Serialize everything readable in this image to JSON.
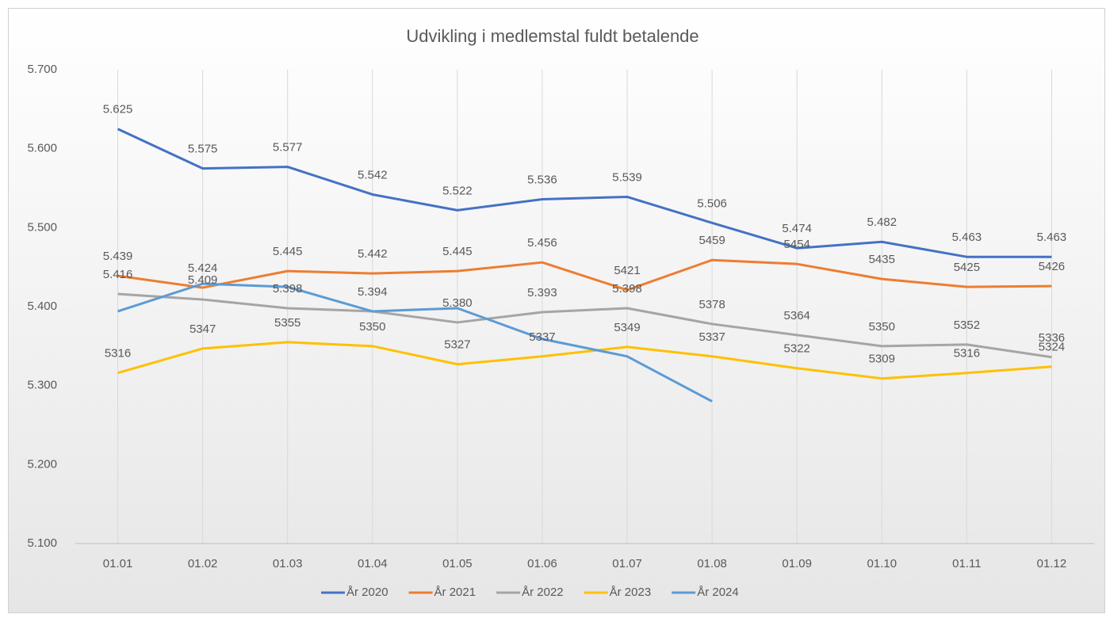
{
  "chart_data": {
    "type": "line",
    "title": "Udvikling i medlemstal fuldt betalende",
    "categories": [
      "01.01",
      "01.02",
      "01.03",
      "01.04",
      "01.05",
      "01.06",
      "01.07",
      "01.08",
      "01.09",
      "01.10",
      "01.11",
      "01.12"
    ],
    "ylim": [
      5100,
      5700
    ],
    "yticks": [
      {
        "value": 5100,
        "label": "5.100"
      },
      {
        "value": 5200,
        "label": "5.200"
      },
      {
        "value": 5300,
        "label": "5.300"
      },
      {
        "value": 5400,
        "label": "5.400"
      },
      {
        "value": 5500,
        "label": "5.500"
      },
      {
        "value": 5600,
        "label": "5.600"
      },
      {
        "value": 5700,
        "label": "5.700"
      }
    ],
    "grid": true,
    "legend": "bottom",
    "series": [
      {
        "name": "År 2020",
        "color": "#4472c4",
        "values": [
          5625,
          5575,
          5577,
          5542,
          5522,
          5536,
          5539,
          5506,
          5474,
          5482,
          5463,
          5463
        ],
        "value_labels": [
          "5.625",
          "5.575",
          "5.577",
          "5.542",
          "5.522",
          "5.536",
          "5.539",
          "5.506",
          "5.474",
          "5.482",
          "5.463",
          "5.463"
        ]
      },
      {
        "name": "År 2021",
        "color": "#ed7d31",
        "values": [
          5439,
          5424,
          5445,
          5442,
          5445,
          5456,
          5421,
          5459,
          5454,
          5435,
          5425,
          5426
        ],
        "value_labels": [
          "5.439",
          "5.424",
          "5.445",
          "5.442",
          "5.445",
          "5.456",
          "5421",
          "5459",
          "5454",
          "5435",
          "5425",
          "5426"
        ]
      },
      {
        "name": "År 2022",
        "color": "#a5a5a5",
        "values": [
          5416,
          5409,
          5398,
          5394,
          5380,
          5393,
          5398,
          5378,
          5364,
          5350,
          5352,
          5336
        ],
        "value_labels": [
          "5.416",
          "5.409",
          "5.398",
          "5.394",
          "5.380",
          "5.393",
          "5.398",
          "5378",
          "5364",
          "5350",
          "5352",
          "5336"
        ]
      },
      {
        "name": "År 2023",
        "color": "#ffc000",
        "values": [
          5316,
          5347,
          5355,
          5350,
          5327,
          5337,
          5349,
          5337,
          5322,
          5309,
          5316,
          5324
        ]
      },
      {
        "name": "År 2024",
        "color": "#5b9bd5",
        "values": [
          5394,
          5429,
          5425,
          5394,
          5398,
          5359,
          5337,
          5280,
          null,
          null,
          null,
          null
        ]
      }
    ]
  }
}
